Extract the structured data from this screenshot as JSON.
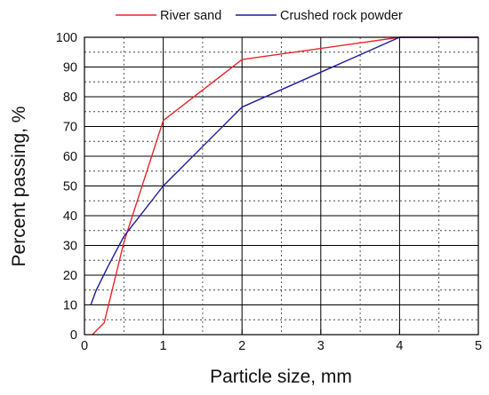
{
  "chart_data": {
    "type": "line",
    "xlabel": "Particle size, mm",
    "ylabel": "Percent passing, %",
    "xlim": [
      0,
      5
    ],
    "ylim": [
      0,
      100
    ],
    "x_ticks": [
      "0",
      "1",
      "2",
      "3",
      "4",
      "5"
    ],
    "y_ticks": [
      "0",
      "10",
      "20",
      "30",
      "40",
      "50",
      "60",
      "70",
      "80",
      "90",
      "100"
    ],
    "grid": "on",
    "legend_position": "top",
    "series": [
      {
        "name": "River sand",
        "color": "#e8262a",
        "x": [
          0.1,
          0.25,
          0.5,
          1,
          2,
          4,
          5
        ],
        "y": [
          0,
          4,
          31,
          72,
          92.5,
          100,
          100
        ]
      },
      {
        "name": "Crushed rock powder",
        "color": "#1c1c9c",
        "x": [
          0.08,
          0.15,
          0.3,
          0.5,
          1,
          2,
          4,
          5
        ],
        "y": [
          10,
          15,
          23,
          33,
          50,
          76.5,
          100,
          100
        ]
      }
    ]
  }
}
